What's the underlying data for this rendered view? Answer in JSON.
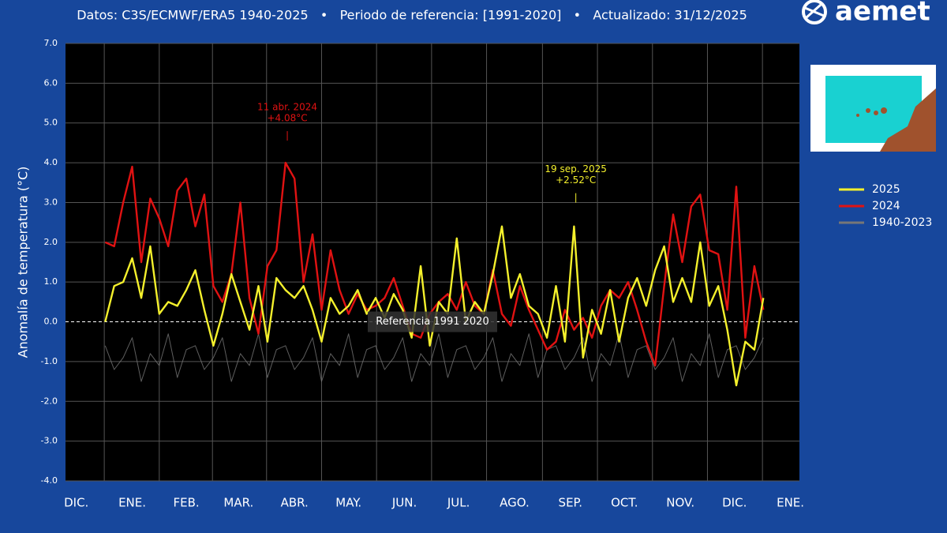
{
  "logo": "aemet",
  "chart_data": {
    "type": "line",
    "subtitle": "Datos: C3S/ECMWF/ERA5 1940-2025   •   Periodo de referencia: [1991-2020]   •   Actualizado: 31/12/2025",
    "ylabel": "Anomalía de temperatura (°C)",
    "reference_label": "Referencia 1991 2020",
    "xlim": [
      -22,
      385
    ],
    "xticks": [
      {
        "value": -16,
        "label": "DIC."
      },
      {
        "value": 15,
        "label": "ENE."
      },
      {
        "value": 45,
        "label": "FEB."
      },
      {
        "value": 74,
        "label": "MAR."
      },
      {
        "value": 105,
        "label": "ABR."
      },
      {
        "value": 135,
        "label": "MAY."
      },
      {
        "value": 166,
        "label": "JUN."
      },
      {
        "value": 196,
        "label": "JUL."
      },
      {
        "value": 227,
        "label": "AGO."
      },
      {
        "value": 258,
        "label": "SEP."
      },
      {
        "value": 288,
        "label": "OCT."
      },
      {
        "value": 319,
        "label": "NOV."
      },
      {
        "value": 349,
        "label": "DIC."
      },
      {
        "value": 380,
        "label": "ENE."
      }
    ],
    "ylim": [
      -4,
      7
    ],
    "yticks": [
      {
        "value": -4,
        "label": "-4.0"
      },
      {
        "value": -3,
        "label": "-3.0"
      },
      {
        "value": -2,
        "label": "-2.0"
      },
      {
        "value": -1,
        "label": "-1.0"
      },
      {
        "value": 0,
        "label": "0.0"
      },
      {
        "value": 1,
        "label": "1.0"
      },
      {
        "value": 2,
        "label": "2.0"
      },
      {
        "value": 3,
        "label": "3.0"
      },
      {
        "value": 4,
        "label": "4.0"
      },
      {
        "value": 5,
        "label": "5.0"
      },
      {
        "value": 6,
        "label": "6.0"
      },
      {
        "value": 7,
        "label": "7.0"
      }
    ],
    "grid": true,
    "x": [
      0,
      5,
      10,
      15,
      20,
      25,
      30,
      35,
      40,
      45,
      50,
      55,
      60,
      65,
      70,
      75,
      80,
      85,
      90,
      95,
      100,
      105,
      110,
      115,
      120,
      125,
      130,
      135,
      140,
      145,
      150,
      155,
      160,
      165,
      170,
      175,
      180,
      185,
      190,
      195,
      200,
      205,
      210,
      215,
      220,
      225,
      230,
      235,
      240,
      245,
      250,
      255,
      260,
      265,
      270,
      275,
      280,
      285,
      290,
      295,
      300,
      305,
      310,
      315,
      320,
      325,
      330,
      335,
      340,
      345,
      350,
      355,
      360,
      365
    ],
    "series": [
      {
        "name": "1940-2023",
        "color": "#777777",
        "values": [
          -0.6,
          -1.2,
          -0.9,
          -0.4,
          -1.5,
          -0.8,
          -1.1,
          -0.3,
          -1.4,
          -0.7,
          -0.6,
          -1.2,
          -0.9,
          -0.4,
          -1.5,
          -0.8,
          -1.1,
          -0.3,
          -1.4,
          -0.7,
          -0.6,
          -1.2,
          -0.9,
          -0.4,
          -1.5,
          -0.8,
          -1.1,
          -0.3,
          -1.4,
          -0.7,
          -0.6,
          -1.2,
          -0.9,
          -0.4,
          -1.5,
          -0.8,
          -1.1,
          -0.3,
          -1.4,
          -0.7,
          -0.6,
          -1.2,
          -0.9,
          -0.4,
          -1.5,
          -0.8,
          -1.1,
          -0.3,
          -1.4,
          -0.7,
          -0.6,
          -1.2,
          -0.9,
          -0.4,
          -1.5,
          -0.8,
          -1.1,
          -0.3,
          -1.4,
          -0.7,
          -0.6,
          -1.2,
          -0.9,
          -0.4,
          -1.5,
          -0.8,
          -1.1,
          -0.3,
          -1.4,
          -0.7,
          -0.6,
          -1.2,
          -0.9,
          -0.4
        ]
      },
      {
        "name": "2024",
        "color": "#e01212",
        "values": [
          2.0,
          1.9,
          3.0,
          3.9,
          1.5,
          3.1,
          2.6,
          1.9,
          3.3,
          3.6,
          2.4,
          3.2,
          0.9,
          0.5,
          1.2,
          3.0,
          0.6,
          -0.3,
          1.4,
          1.8,
          4.0,
          3.6,
          1.0,
          2.2,
          0.3,
          1.8,
          0.8,
          0.2,
          0.7,
          0.3,
          0.4,
          0.6,
          1.1,
          0.4,
          -0.3,
          -0.4,
          0.2,
          0.5,
          0.7,
          0.3,
          1.0,
          0.4,
          0.2,
          1.3,
          0.2,
          -0.1,
          0.9,
          0.3,
          -0.2,
          -0.7,
          -0.5,
          0.3,
          -0.2,
          0.1,
          -0.4,
          0.4,
          0.8,
          0.6,
          1.0,
          0.3,
          -0.5,
          -1.1,
          0.9,
          2.7,
          1.5,
          2.9,
          3.2,
          1.8,
          1.7,
          0.3,
          3.4,
          -0.4,
          1.4,
          0.3
        ]
      },
      {
        "name": "2025",
        "color": "#f4f02c",
        "values": [
          0.0,
          0.9,
          1.0,
          1.6,
          0.6,
          1.9,
          0.2,
          0.5,
          0.4,
          0.8,
          1.3,
          0.3,
          -0.6,
          0.2,
          1.2,
          0.5,
          -0.2,
          0.9,
          -0.5,
          1.1,
          0.8,
          0.6,
          0.9,
          0.3,
          -0.5,
          0.6,
          0.2,
          0.4,
          0.8,
          0.2,
          0.6,
          0.1,
          0.7,
          0.3,
          -0.4,
          1.4,
          -0.6,
          0.5,
          0.2,
          2.1,
          0.0,
          0.5,
          0.2,
          1.2,
          2.4,
          0.6,
          1.2,
          0.4,
          0.2,
          -0.4,
          0.9,
          -0.5,
          2.4,
          -0.9,
          0.3,
          -0.3,
          0.8,
          -0.5,
          0.6,
          1.1,
          0.4,
          1.3,
          1.9,
          0.5,
          1.1,
          0.5,
          2.0,
          0.4,
          0.9,
          -0.2,
          -1.6,
          -0.5,
          -0.7,
          0.6
        ]
      }
    ],
    "annotations": [
      {
        "date": "11 abr. 2024",
        "text": "+4.08°C",
        "x": 101,
        "value": 4.08,
        "color": "#e01212"
      },
      {
        "date": "19 sep. 2025",
        "text": "+2.52°C",
        "x": 261,
        "value": 2.52,
        "color": "#f4f02c"
      }
    ]
  }
}
